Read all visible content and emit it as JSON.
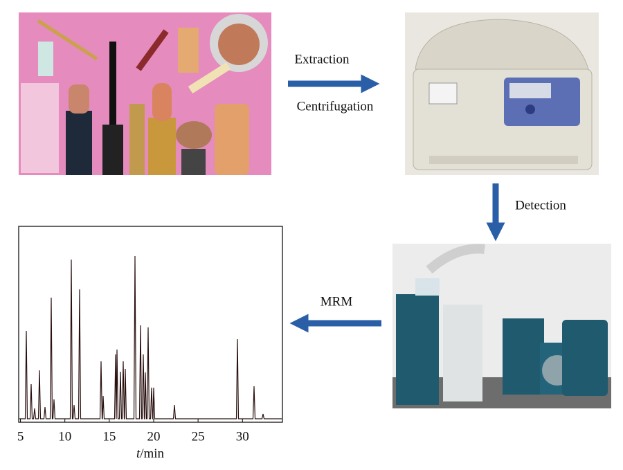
{
  "steps": {
    "extraction": "Extraction",
    "centrifugation": "Centrifugation",
    "detection": "Detection",
    "mrm": "MRM"
  },
  "chromatogram": {
    "xlim": [
      4.8,
      34.5
    ],
    "xticks": [
      5,
      10,
      15,
      20,
      25,
      30
    ],
    "x_label": {
      "variable": "t",
      "unit": "/min"
    }
  }
}
